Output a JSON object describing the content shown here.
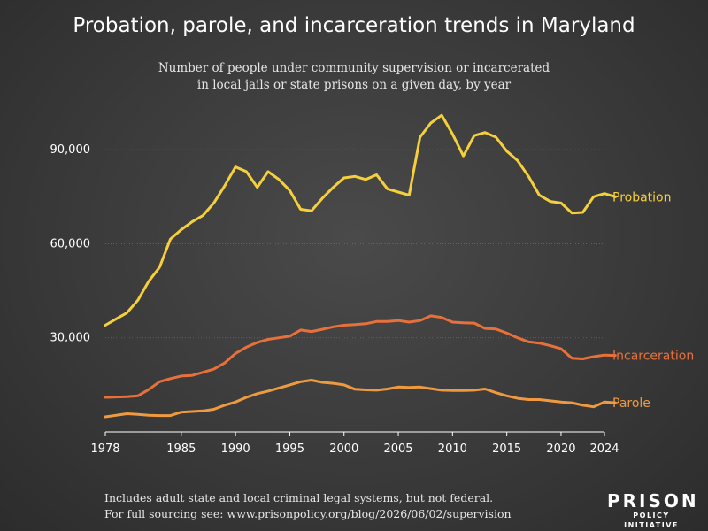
{
  "title": "Probation, parole, and incarceration trends in Maryland",
  "subtitle_line1": "Number of people under community supervision or incarcerated",
  "subtitle_line2": "in local jails or state prisons on a given day, by year",
  "footer_line1": "Includes adult state and local criminal legal systems, but not federal.",
  "footer_line2": "For full sourcing see: www.prisonpolicy.org/blog/2026/06/02/supervision",
  "logo": {
    "main": "PRISON",
    "sub": "POLICY INITIATIVE"
  },
  "chart_data": {
    "type": "line",
    "title": "Probation, parole, and incarceration trends in Maryland",
    "xlabel": "",
    "ylabel": "",
    "xlim": [
      1978,
      2024
    ],
    "ylim": [
      0,
      105000
    ],
    "x_ticks": [
      1978,
      1985,
      1990,
      1995,
      2000,
      2005,
      2010,
      2015,
      2020,
      2024
    ],
    "y_ticks": [
      30000,
      60000,
      90000
    ],
    "y_tick_labels": [
      "30,000",
      "60,000",
      "90,000"
    ],
    "grid": "horizontal",
    "legend": "end-of-line labels",
    "series": [
      {
        "name": "Probation",
        "color": "#f5cf3c",
        "points": [
          [
            1978,
            34000
          ],
          [
            1980,
            38000
          ],
          [
            1981,
            42000
          ],
          [
            1982,
            48000
          ],
          [
            1983,
            52500
          ],
          [
            1984,
            61500
          ],
          [
            1985,
            64500
          ],
          [
            1986,
            67000
          ],
          [
            1987,
            69000
          ],
          [
            1988,
            73000
          ],
          [
            1989,
            78500
          ],
          [
            1990,
            84500
          ],
          [
            1991,
            83000
          ],
          [
            1992,
            78000
          ],
          [
            1993,
            83000
          ],
          [
            1994,
            80500
          ],
          [
            1995,
            77000
          ],
          [
            1996,
            71000
          ],
          [
            1997,
            70500
          ],
          [
            1998,
            74500
          ],
          [
            1999,
            78000
          ],
          [
            2000,
            81000
          ],
          [
            2001,
            81500
          ],
          [
            2002,
            80500
          ],
          [
            2003,
            82000
          ],
          [
            2004,
            77500
          ],
          [
            2005,
            76500
          ],
          [
            2006,
            75500
          ],
          [
            2007,
            94000
          ],
          [
            2008,
            98500
          ],
          [
            2009,
            101000
          ],
          [
            2010,
            95000
          ],
          [
            2011,
            88000
          ],
          [
            2012,
            94500
          ],
          [
            2013,
            95500
          ],
          [
            2014,
            94000
          ],
          [
            2015,
            89500
          ],
          [
            2016,
            86500
          ],
          [
            2017,
            81500
          ],
          [
            2018,
            75500
          ],
          [
            2019,
            73500
          ],
          [
            2020,
            73000
          ],
          [
            2021,
            69800
          ],
          [
            2022,
            70000
          ],
          [
            2023,
            75000
          ],
          [
            2024,
            76000
          ],
          [
            2025,
            75000
          ]
        ]
      },
      {
        "name": "Incarceration",
        "color": "#e8703a",
        "points": [
          [
            1978,
            11000
          ],
          [
            1980,
            11200
          ],
          [
            1981,
            11500
          ],
          [
            1982,
            13500
          ],
          [
            1983,
            16000
          ],
          [
            1984,
            17000
          ],
          [
            1985,
            17800
          ],
          [
            1986,
            18000
          ],
          [
            1987,
            19000
          ],
          [
            1988,
            20000
          ],
          [
            1989,
            22000
          ],
          [
            1990,
            25000
          ],
          [
            1991,
            27000
          ],
          [
            1992,
            28500
          ],
          [
            1993,
            29500
          ],
          [
            1994,
            30000
          ],
          [
            1995,
            30500
          ],
          [
            1996,
            32500
          ],
          [
            1997,
            32000
          ],
          [
            1998,
            32700
          ],
          [
            1999,
            33500
          ],
          [
            2000,
            34000
          ],
          [
            2001,
            34200
          ],
          [
            2002,
            34500
          ],
          [
            2003,
            35200
          ],
          [
            2004,
            35200
          ],
          [
            2005,
            35500
          ],
          [
            2006,
            35000
          ],
          [
            2007,
            35500
          ],
          [
            2008,
            37000
          ],
          [
            2009,
            36500
          ],
          [
            2010,
            35000
          ],
          [
            2011,
            34800
          ],
          [
            2012,
            34700
          ],
          [
            2013,
            33000
          ],
          [
            2014,
            32800
          ],
          [
            2015,
            31500
          ],
          [
            2016,
            30000
          ],
          [
            2017,
            28700
          ],
          [
            2018,
            28300
          ],
          [
            2019,
            27500
          ],
          [
            2020,
            26500
          ],
          [
            2021,
            23500
          ],
          [
            2022,
            23300
          ],
          [
            2023,
            24000
          ],
          [
            2024,
            24500
          ],
          [
            2025,
            24400
          ]
        ]
      },
      {
        "name": "Parole",
        "color": "#f09a40",
        "points": [
          [
            1978,
            4800
          ],
          [
            1980,
            5800
          ],
          [
            1981,
            5600
          ],
          [
            1982,
            5300
          ],
          [
            1983,
            5200
          ],
          [
            1984,
            5200
          ],
          [
            1985,
            6300
          ],
          [
            1986,
            6500
          ],
          [
            1987,
            6700
          ],
          [
            1988,
            7200
          ],
          [
            1989,
            8500
          ],
          [
            1990,
            9500
          ],
          [
            1991,
            11000
          ],
          [
            1992,
            12200
          ],
          [
            1993,
            13000
          ],
          [
            1994,
            14000
          ],
          [
            1995,
            15000
          ],
          [
            1996,
            16000
          ],
          [
            1997,
            16500
          ],
          [
            1998,
            15800
          ],
          [
            1999,
            15500
          ],
          [
            2000,
            15000
          ],
          [
            2001,
            13600
          ],
          [
            2002,
            13400
          ],
          [
            2003,
            13300
          ],
          [
            2004,
            13700
          ],
          [
            2005,
            14300
          ],
          [
            2006,
            14200
          ],
          [
            2007,
            14300
          ],
          [
            2008,
            13800
          ],
          [
            2009,
            13300
          ],
          [
            2010,
            13200
          ],
          [
            2011,
            13200
          ],
          [
            2012,
            13300
          ],
          [
            2013,
            13700
          ],
          [
            2014,
            12500
          ],
          [
            2015,
            11500
          ],
          [
            2016,
            10700
          ],
          [
            2017,
            10300
          ],
          [
            2018,
            10300
          ],
          [
            2019,
            9900
          ],
          [
            2020,
            9500
          ],
          [
            2021,
            9300
          ],
          [
            2022,
            8500
          ],
          [
            2023,
            8000
          ],
          [
            2024,
            9500
          ],
          [
            2025,
            9300
          ]
        ]
      }
    ]
  }
}
